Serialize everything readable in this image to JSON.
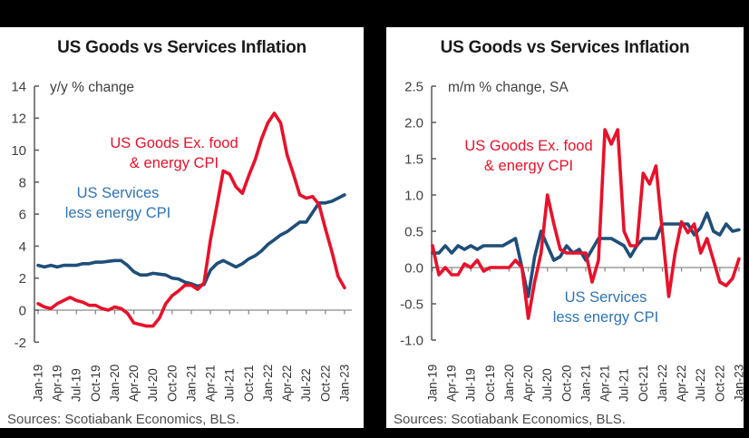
{
  "colors": {
    "background": "#000000",
    "panel": "#ffffff",
    "goods_red": "#e8112a",
    "services_navy": "#1f4e79",
    "services_label_blue": "#2e74b5",
    "axis_gray": "#595959",
    "zero_line_gray": "#8a8a8a"
  },
  "chart_data": [
    {
      "type": "line",
      "title": "US Goods vs Services Inflation",
      "unit_note": "y/y % change",
      "source": "Sources: Scotiabank Economics, BLS.",
      "x_frequency": "monthly",
      "x_range": [
        "Jan-19",
        "Jan-23"
      ],
      "x_tick_labels": [
        "Jan-19",
        "Apr-19",
        "Jul-19",
        "Oct-19",
        "Jan-20",
        "Apr-20",
        "Jul-20",
        "Oct-20",
        "Jan-21",
        "Apr-21",
        "Jul-21",
        "Oct-21",
        "Jan-22",
        "Apr-22",
        "Jul-22",
        "Oct-22",
        "Jan-23"
      ],
      "ylim": [
        -2,
        14
      ],
      "y_step": 2,
      "grid": false,
      "legend_position": "inline-annotations",
      "series": [
        {
          "name": "US Goods Ex. food & energy CPI",
          "label_lines": [
            "US Goods Ex. food",
            "& energy CPI"
          ],
          "color": "#e8112a",
          "values": [
            0.4,
            0.2,
            0.1,
            0.4,
            0.6,
            0.8,
            0.6,
            0.5,
            0.3,
            0.3,
            0.1,
            0.0,
            0.2,
            0.1,
            -0.2,
            -0.8,
            -0.9,
            -1.0,
            -1.0,
            -0.5,
            0.4,
            0.9,
            1.2,
            1.55,
            1.55,
            1.3,
            1.7,
            4.4,
            6.5,
            8.7,
            8.5,
            7.7,
            7.3,
            8.4,
            9.4,
            10.7,
            11.7,
            12.3,
            11.7,
            9.7,
            8.5,
            7.2,
            7.0,
            7.1,
            6.6,
            5.1,
            3.7,
            2.1,
            1.4
          ]
        },
        {
          "name": "US Services less energy CPI",
          "label_lines": [
            "US Services",
            "less energy CPI"
          ],
          "color": "#1f4e79",
          "label_color": "#2e74b5",
          "values": [
            2.8,
            2.7,
            2.8,
            2.7,
            2.8,
            2.8,
            2.8,
            2.9,
            2.9,
            3.0,
            3.0,
            3.05,
            3.1,
            3.1,
            2.8,
            2.4,
            2.2,
            2.2,
            2.3,
            2.25,
            2.2,
            2.0,
            1.95,
            1.75,
            1.65,
            1.5,
            1.6,
            2.5,
            2.9,
            3.1,
            2.9,
            2.7,
            2.9,
            3.2,
            3.4,
            3.7,
            4.1,
            4.4,
            4.7,
            4.9,
            5.2,
            5.5,
            5.5,
            6.1,
            6.7,
            6.7,
            6.8,
            7.0,
            7.2
          ]
        }
      ]
    },
    {
      "type": "line",
      "title": "US Goods vs Services Inflation",
      "unit_note": "m/m % change, SA",
      "source": "Sources: Scotiabank Economics, BLS.",
      "x_frequency": "monthly",
      "x_range": [
        "Jan-19",
        "Jan-23"
      ],
      "x_tick_labels": [
        "Jan-19",
        "Apr-19",
        "Jul-19",
        "Oct-19",
        "Jan-20",
        "Apr-20",
        "Jul-20",
        "Oct-20",
        "Jan-21",
        "Apr-21",
        "Jul-21",
        "Oct-21",
        "Jan-22",
        "Apr-22",
        "Jul-22",
        "Oct-22",
        "Jan-23"
      ],
      "ylim": [
        -1.0,
        2.5
      ],
      "y_step": 0.5,
      "grid": false,
      "legend_position": "inline-annotations",
      "series": [
        {
          "name": "US Goods Ex. food & energy CPI",
          "label_lines": [
            "US Goods Ex. food",
            "& energy CPI"
          ],
          "color": "#e8112a",
          "values": [
            0.3,
            -0.1,
            0.0,
            -0.1,
            -0.1,
            0.05,
            0.0,
            0.1,
            -0.05,
            0.0,
            0.0,
            0.0,
            0.0,
            0.1,
            0.0,
            -0.7,
            -0.2,
            0.2,
            1.0,
            0.6,
            0.25,
            0.2,
            0.2,
            0.2,
            0.2,
            -0.2,
            0.1,
            1.9,
            1.7,
            1.9,
            0.5,
            0.3,
            0.3,
            1.3,
            1.15,
            1.4,
            0.5,
            -0.4,
            0.2,
            0.63,
            0.48,
            0.6,
            0.2,
            0.4,
            0.1,
            -0.2,
            -0.25,
            -0.15,
            0.12
          ]
        },
        {
          "name": "US Services less energy CPI",
          "label_lines": [
            "US Services",
            "less energy CPI"
          ],
          "color": "#1f4e79",
          "label_color": "#2e74b5",
          "values": [
            0.2,
            0.2,
            0.3,
            0.2,
            0.3,
            0.25,
            0.3,
            0.25,
            0.3,
            0.3,
            0.3,
            0.3,
            0.35,
            0.4,
            0.0,
            -0.4,
            0.15,
            0.5,
            0.3,
            0.1,
            0.15,
            0.3,
            0.2,
            0.25,
            0.1,
            0.25,
            0.4,
            0.4,
            0.4,
            0.35,
            0.3,
            0.15,
            0.3,
            0.4,
            0.4,
            0.4,
            0.6,
            0.6,
            0.6,
            0.6,
            0.6,
            0.45,
            0.55,
            0.75,
            0.5,
            0.45,
            0.6,
            0.5,
            0.52
          ]
        }
      ]
    }
  ]
}
